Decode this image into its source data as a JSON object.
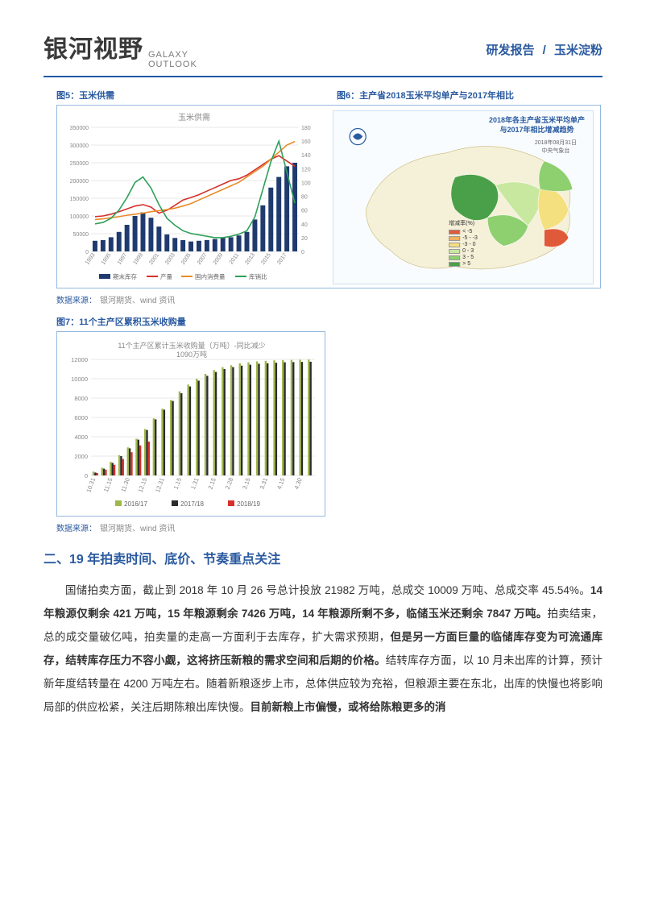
{
  "header": {
    "logo_cn": "银河视野",
    "logo_en_top": "GALAXY",
    "logo_en_bot": "OUTLOOK",
    "right_a": "研发报告",
    "right_sep": "/",
    "right_b": "玉米淀粉"
  },
  "fig5": {
    "label": "图5：玉米供需",
    "chart_title": "玉米供需",
    "y_left_max": 350000,
    "y_left_step": 50000,
    "y_right_max": 180,
    "y_right_step": 20,
    "years": [
      "1993",
      "1995",
      "1997",
      "1999",
      "2001",
      "2003",
      "2005",
      "2007",
      "2009",
      "2011",
      "2013",
      "2015",
      "2017"
    ],
    "bars_stock": [
      30000,
      32000,
      40000,
      55000,
      75000,
      100000,
      110000,
      95000,
      70000,
      48000,
      38000,
      32000,
      28000,
      30000,
      32000,
      35000,
      38000,
      40000,
      45000,
      55000,
      90000,
      130000,
      180000,
      210000,
      240000,
      250000
    ],
    "line_prod": [
      98000,
      100000,
      105000,
      112000,
      120000,
      128000,
      132000,
      125000,
      108000,
      116000,
      130000,
      145000,
      152000,
      160000,
      170000,
      180000,
      190000,
      200000,
      205000,
      215000,
      230000,
      245000,
      260000,
      270000,
      255000,
      240000
    ],
    "line_cons": [
      90000,
      92000,
      95000,
      98000,
      102000,
      105000,
      108000,
      112000,
      115000,
      118000,
      122000,
      128000,
      135000,
      145000,
      155000,
      165000,
      175000,
      185000,
      195000,
      210000,
      225000,
      240000,
      260000,
      280000,
      300000,
      310000
    ],
    "line_ratio": [
      40,
      42,
      48,
      60,
      78,
      100,
      108,
      92,
      68,
      48,
      38,
      30,
      26,
      24,
      22,
      20,
      20,
      22,
      25,
      30,
      50,
      90,
      130,
      160,
      115,
      70
    ],
    "colors": {
      "bar": "#1f3a6e",
      "prod": "#d7302a",
      "cons": "#e88c2a",
      "ratio": "#2fa05a",
      "axis": "#d0d0d0",
      "tick_text": "#888888"
    },
    "legend": [
      "期末库存",
      "产量",
      "国内消费量",
      "库销比"
    ]
  },
  "fig6": {
    "label": "图6：主产省2018玉米平均单产与2017年相比",
    "map_title_l1": "2018年各主产省玉米平均单产",
    "map_title_l2": "与2017年相比增减趋势",
    "map_date_l1": "2018年08月31日",
    "map_date_l2": "中央气象台",
    "legend_title": "增减率(%)",
    "legend_items": [
      {
        "c": "#e05a3a",
        "t": "< -5"
      },
      {
        "c": "#f0b060",
        "t": "-5 - -3"
      },
      {
        "c": "#f5e080",
        "t": "-3 - 0"
      },
      {
        "c": "#c8e8a0",
        "t": "0 - 3"
      },
      {
        "c": "#8ed070",
        "t": "3 - 5"
      },
      {
        "c": "#4aa048",
        "t": "> 5"
      }
    ]
  },
  "source1": {
    "label": "数据来源：",
    "text": "银河期货、wind 资讯"
  },
  "fig7": {
    "label": "图7：11个主产区累积玉米收购量",
    "chart_title_l1": "11个主产区累计玉米收购量（万吨）-同比减少",
    "chart_title_l2": "1090万吨",
    "y_max": 12000,
    "y_step": 2000,
    "x_labels": [
      "10.31",
      "11.15",
      "11.30",
      "12.15",
      "12.31",
      "1.15",
      "1.31",
      "2.15",
      "2.28",
      "3.15",
      "3.31",
      "4.15",
      "4.30"
    ],
    "series_1617": [
      400,
      800,
      1400,
      2100,
      2900,
      3800,
      4800,
      5900,
      6900,
      7800,
      8700,
      9400,
      10000,
      10500,
      10900,
      11200,
      11400,
      11600,
      11700,
      11800,
      11850,
      11900,
      11920,
      11950,
      11970,
      11990
    ],
    "series_1718": [
      300,
      700,
      1300,
      2000,
      2800,
      3700,
      4700,
      5800,
      6800,
      7700,
      8500,
      9200,
      9800,
      10300,
      10700,
      11000,
      11200,
      11350,
      11450,
      11550,
      11600,
      11650,
      11700,
      11720,
      11740,
      11760
    ],
    "series_1819": [
      250,
      600,
      1100,
      1700,
      2400,
      3100,
      3500
    ],
    "colors": {
      "s1617": "#9fb84a",
      "s1718": "#2b2b2b",
      "s1819": "#d7302a",
      "axis": "#d0d0d0",
      "tick": "#888"
    },
    "legend": [
      "2016/17",
      "2017/18",
      "2018/19"
    ]
  },
  "source2": {
    "label": "数据来源：",
    "text": "银河期货、wind 资讯"
  },
  "section2_h": "二、19 年拍卖时间、底价、节奏重点关注",
  "body": {
    "p1_a": "国储拍卖方面，截止到 2018 年 10 月 26 号总计投放 21982 万吨，总成交 10009 万吨、总成交率 45.54%。",
    "p1_b": "14 年粮源仅剩余 421 万吨，15 年粮源剩余 7426 万吨，14 年粮源所剩不多，临储玉米还剩余 7847 万吨。",
    "p1_c": "拍卖结束，总的成交量破亿吨，拍卖量的走高一方面利于去库存，扩大需求预期，",
    "p1_d": "但是另一方面巨量的临储库存变为可流通库存，结转库存压力不容小觑，这将挤压新粮的需求空间和后期的价格。",
    "p1_e": "结转库存方面，以 10 月未出库的计算，预计新年度结转量在 4200 万吨左右。随着新粮逐步上市，总体供应较为充裕，但粮源主要在东北，出库的快慢也将影响局部的供应松紧，关注后期陈粮出库快慢。",
    "p1_f": "目前新粮上市偏慢，或将给陈粮更多的消"
  }
}
